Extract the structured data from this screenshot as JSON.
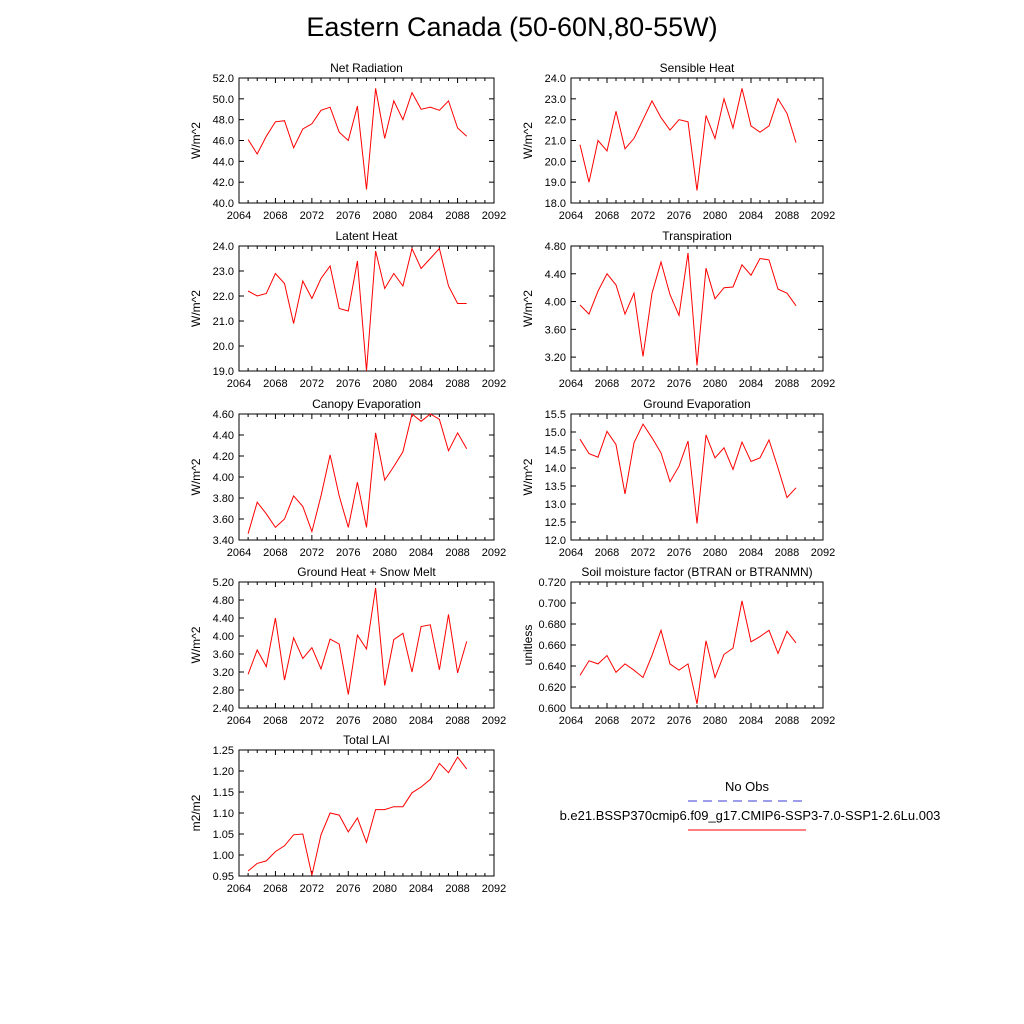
{
  "page": {
    "title": "Eastern Canada (50-60N,80-55W)"
  },
  "colors": {
    "model": "#ff0000",
    "obs": "#3b3bd6",
    "axis": "#000000"
  },
  "legend": {
    "obs_label": "No Obs",
    "run_label": "b.e21.BSSP370cmip6.f09_g17.CMIP6-SSP3-7.0-SSP1-2.6Lu.003"
  },
  "chart_data": [
    {
      "type": "line",
      "title": "Net Radiation",
      "ylabel": "W/m^2",
      "xlim": [
        2064,
        2092
      ],
      "ylim": [
        40.0,
        52.0
      ],
      "xticks": [
        "2064",
        "2068",
        "2072",
        "2076",
        "2080",
        "2084",
        "2088",
        "2092"
      ],
      "yticks": [
        "40.0",
        "42.0",
        "44.0",
        "46.0",
        "48.0",
        "50.0",
        "52.0"
      ],
      "x": [
        2065,
        2066,
        2067,
        2068,
        2069,
        2070,
        2071,
        2072,
        2073,
        2074,
        2075,
        2076,
        2077,
        2078,
        2079,
        2080,
        2081,
        2082,
        2083,
        2084,
        2085,
        2086,
        2087,
        2088,
        2089
      ],
      "series": [
        {
          "values": [
            46.1,
            44.7,
            46.4,
            47.8,
            47.9,
            45.3,
            47.1,
            47.6,
            48.9,
            49.2,
            46.8,
            46.0,
            49.3,
            41.3,
            51.0,
            46.2,
            49.8,
            48.0,
            50.6,
            49.0,
            49.2,
            48.9,
            49.8,
            47.2,
            46.4
          ]
        }
      ]
    },
    {
      "type": "line",
      "title": "Sensible Heat",
      "ylabel": "W/m^2",
      "xlim": [
        2064,
        2092
      ],
      "ylim": [
        18.0,
        24.0
      ],
      "xticks": [
        "2064",
        "2068",
        "2072",
        "2076",
        "2080",
        "2084",
        "2088",
        "2092"
      ],
      "yticks": [
        "18.0",
        "19.0",
        "20.0",
        "21.0",
        "22.0",
        "23.0",
        "24.0"
      ],
      "x": [
        2065,
        2066,
        2067,
        2068,
        2069,
        2070,
        2071,
        2072,
        2073,
        2074,
        2075,
        2076,
        2077,
        2078,
        2079,
        2080,
        2081,
        2082,
        2083,
        2084,
        2085,
        2086,
        2087,
        2088,
        2089
      ],
      "series": [
        {
          "values": [
            20.8,
            19.0,
            21.0,
            20.5,
            22.4,
            20.6,
            21.1,
            22.0,
            22.9,
            22.1,
            21.5,
            22.0,
            21.9,
            18.6,
            22.2,
            21.1,
            23.0,
            21.6,
            23.5,
            21.7,
            21.4,
            21.7,
            23.0,
            22.3,
            20.9
          ]
        }
      ]
    },
    {
      "type": "line",
      "title": "Latent Heat",
      "ylabel": "W/m^2",
      "xlim": [
        2064,
        2092
      ],
      "ylim": [
        19.0,
        24.0
      ],
      "xticks": [
        "2064",
        "2068",
        "2072",
        "2076",
        "2080",
        "2084",
        "2088",
        "2092"
      ],
      "yticks": [
        "19.0",
        "20.0",
        "21.0",
        "22.0",
        "23.0",
        "24.0"
      ],
      "x": [
        2065,
        2066,
        2067,
        2068,
        2069,
        2070,
        2071,
        2072,
        2073,
        2074,
        2075,
        2076,
        2077,
        2078,
        2079,
        2080,
        2081,
        2082,
        2083,
        2084,
        2085,
        2086,
        2087,
        2088,
        2089
      ],
      "series": [
        {
          "values": [
            22.2,
            22.0,
            22.1,
            22.9,
            22.5,
            20.9,
            22.6,
            21.9,
            22.7,
            23.2,
            21.5,
            21.4,
            23.4,
            19.0,
            23.8,
            22.3,
            22.9,
            22.4,
            23.9,
            23.1,
            23.5,
            23.9,
            22.4,
            21.7,
            21.7
          ]
        }
      ]
    },
    {
      "type": "line",
      "title": "Transpiration",
      "ylabel": "W/m^2",
      "xlim": [
        2064,
        2092
      ],
      "ylim": [
        3.0,
        4.8
      ],
      "xticks": [
        "2064",
        "2068",
        "2072",
        "2076",
        "2080",
        "2084",
        "2088",
        "2092"
      ],
      "yticks": [
        "3.20",
        "3.60",
        "4.00",
        "4.40",
        "4.80"
      ],
      "ytick_values": [
        3.2,
        3.6,
        4.0,
        4.4,
        4.8
      ],
      "x": [
        2065,
        2066,
        2067,
        2068,
        2069,
        2070,
        2071,
        2072,
        2073,
        2074,
        2075,
        2076,
        2077,
        2078,
        2079,
        2080,
        2081,
        2082,
        2083,
        2084,
        2085,
        2086,
        2087,
        2088,
        2089
      ],
      "series": [
        {
          "values": [
            3.95,
            3.82,
            4.15,
            4.4,
            4.24,
            3.82,
            4.12,
            3.21,
            4.12,
            4.57,
            4.1,
            3.8,
            4.7,
            3.08,
            4.48,
            4.04,
            4.2,
            4.21,
            4.53,
            4.38,
            4.62,
            4.6,
            4.18,
            4.12,
            3.94
          ]
        }
      ]
    },
    {
      "type": "line",
      "title": "Canopy Evaporation",
      "ylabel": "W/m^2",
      "xlim": [
        2064,
        2092
      ],
      "ylim": [
        3.4,
        4.6
      ],
      "xticks": [
        "2064",
        "2068",
        "2072",
        "2076",
        "2080",
        "2084",
        "2088",
        "2092"
      ],
      "yticks": [
        "3.40",
        "3.60",
        "3.80",
        "4.00",
        "4.20",
        "4.40",
        "4.60"
      ],
      "x": [
        2065,
        2066,
        2067,
        2068,
        2069,
        2070,
        2071,
        2072,
        2073,
        2074,
        2075,
        2076,
        2077,
        2078,
        2079,
        2080,
        2081,
        2082,
        2083,
        2084,
        2085,
        2086,
        2087,
        2088,
        2089
      ],
      "series": [
        {
          "values": [
            3.46,
            3.76,
            3.65,
            3.52,
            3.6,
            3.82,
            3.72,
            3.48,
            3.82,
            4.21,
            3.82,
            3.52,
            3.95,
            3.52,
            4.42,
            3.97,
            4.1,
            4.24,
            4.6,
            4.53,
            4.6,
            4.55,
            4.25,
            4.42,
            4.27
          ]
        }
      ]
    },
    {
      "type": "line",
      "title": "Ground Evaporation",
      "ylabel": "W/m^2",
      "xlim": [
        2064,
        2092
      ],
      "ylim": [
        12.0,
        15.5
      ],
      "xticks": [
        "2064",
        "2068",
        "2072",
        "2076",
        "2080",
        "2084",
        "2088",
        "2092"
      ],
      "yticks": [
        "12.0",
        "12.5",
        "13.0",
        "13.5",
        "14.0",
        "14.5",
        "15.0",
        "15.5"
      ],
      "x": [
        2065,
        2066,
        2067,
        2068,
        2069,
        2070,
        2071,
        2072,
        2073,
        2074,
        2075,
        2076,
        2077,
        2078,
        2079,
        2080,
        2081,
        2082,
        2083,
        2084,
        2085,
        2086,
        2087,
        2088,
        2089
      ],
      "series": [
        {
          "values": [
            14.8,
            14.4,
            14.3,
            15.02,
            14.65,
            13.28,
            14.7,
            15.22,
            14.84,
            14.42,
            13.62,
            14.05,
            14.75,
            12.46,
            14.92,
            14.28,
            14.56,
            13.96,
            14.72,
            14.18,
            14.28,
            14.78,
            14.0,
            13.18,
            13.45
          ]
        }
      ]
    },
    {
      "type": "line",
      "title": "Ground Heat + Snow Melt",
      "ylabel": "W/m^2",
      "xlim": [
        2064,
        2092
      ],
      "ylim": [
        2.4,
        5.2
      ],
      "xticks": [
        "2064",
        "2068",
        "2072",
        "2076",
        "2080",
        "2084",
        "2088",
        "2092"
      ],
      "yticks": [
        "2.40",
        "2.80",
        "3.20",
        "3.60",
        "4.00",
        "4.40",
        "4.80",
        "5.20"
      ],
      "x": [
        2065,
        2066,
        2067,
        2068,
        2069,
        2070,
        2071,
        2072,
        2073,
        2074,
        2075,
        2076,
        2077,
        2078,
        2079,
        2080,
        2081,
        2082,
        2083,
        2084,
        2085,
        2086,
        2087,
        2088,
        2089
      ],
      "series": [
        {
          "values": [
            3.15,
            3.69,
            3.32,
            4.4,
            3.02,
            3.96,
            3.5,
            3.74,
            3.27,
            3.93,
            3.82,
            2.7,
            4.02,
            3.71,
            5.07,
            2.9,
            3.92,
            4.06,
            3.2,
            4.21,
            4.25,
            3.25,
            4.48,
            3.18,
            3.88
          ]
        }
      ]
    },
    {
      "type": "line",
      "title": "Soil moisture factor (BTRAN or BTRANMN)",
      "ylabel": "unitless",
      "xlim": [
        2064,
        2092
      ],
      "ylim": [
        0.6,
        0.72
      ],
      "xticks": [
        "2064",
        "2068",
        "2072",
        "2076",
        "2080",
        "2084",
        "2088",
        "2092"
      ],
      "yticks": [
        "0.600",
        "0.620",
        "0.640",
        "0.660",
        "0.680",
        "0.700",
        "0.720"
      ],
      "x": [
        2065,
        2066,
        2067,
        2068,
        2069,
        2070,
        2071,
        2072,
        2073,
        2074,
        2075,
        2076,
        2077,
        2078,
        2079,
        2080,
        2081,
        2082,
        2083,
        2084,
        2085,
        2086,
        2087,
        2088,
        2089
      ],
      "series": [
        {
          "values": [
            0.631,
            0.645,
            0.642,
            0.65,
            0.634,
            0.642,
            0.636,
            0.629,
            0.65,
            0.674,
            0.642,
            0.636,
            0.642,
            0.604,
            0.664,
            0.629,
            0.651,
            0.657,
            0.702,
            0.663,
            0.668,
            0.674,
            0.652,
            0.673,
            0.662
          ]
        }
      ]
    },
    {
      "type": "line",
      "title": "Total LAI",
      "ylabel": "m2/m2",
      "xlim": [
        2064,
        2092
      ],
      "ylim": [
        0.95,
        1.25
      ],
      "xticks": [
        "2064",
        "2068",
        "2072",
        "2076",
        "2080",
        "2084",
        "2088",
        "2092"
      ],
      "yticks": [
        "0.95",
        "1.00",
        "1.05",
        "1.10",
        "1.15",
        "1.20",
        "1.25"
      ],
      "x": [
        2065,
        2066,
        2067,
        2068,
        2069,
        2070,
        2071,
        2072,
        2073,
        2074,
        2075,
        2076,
        2077,
        2078,
        2079,
        2080,
        2081,
        2082,
        2083,
        2084,
        2085,
        2086,
        2087,
        2088,
        2089
      ],
      "series": [
        {
          "values": [
            0.962,
            0.98,
            0.986,
            1.008,
            1.022,
            1.048,
            1.05,
            0.952,
            1.048,
            1.1,
            1.095,
            1.055,
            1.088,
            1.03,
            1.108,
            1.108,
            1.115,
            1.115,
            1.148,
            1.162,
            1.18,
            1.218,
            1.196,
            1.233,
            1.205
          ]
        }
      ]
    }
  ]
}
